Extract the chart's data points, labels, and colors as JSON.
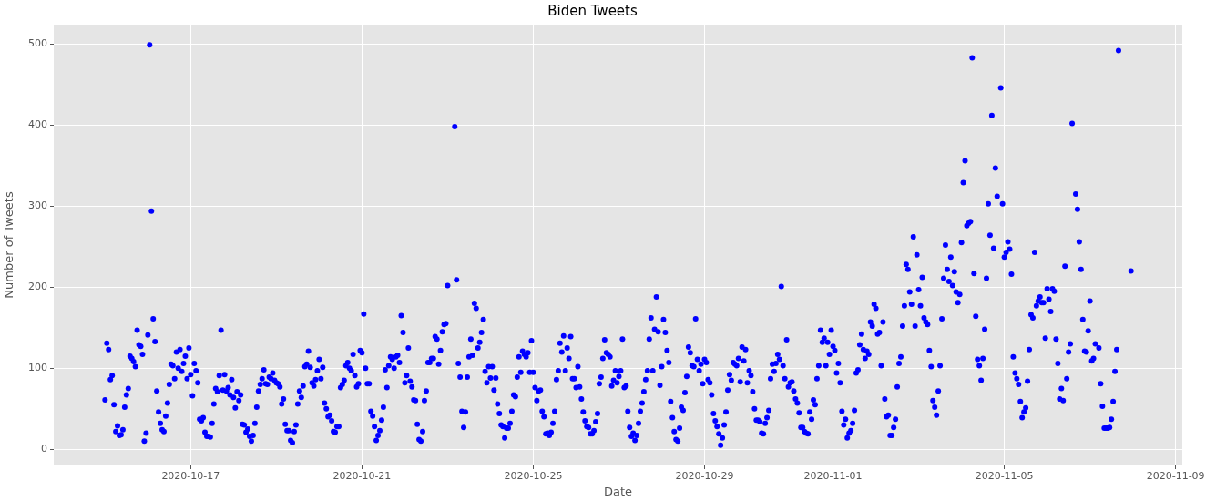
{
  "chart_data": {
    "type": "scatter",
    "title": "Biden Tweets",
    "xlabel": "Date",
    "ylabel": "Number of Tweets",
    "xlim": [
      "2020-10-13T19:15",
      "2020-11-09T03:45"
    ],
    "xticks": [
      "2020-10-17",
      "2020-10-21",
      "2020-10-25",
      "2020-10-29",
      "2020-11-01",
      "2020-11-05",
      "2020-11-09"
    ],
    "ylim": [
      -20,
      524
    ],
    "yticks": [
      0,
      100,
      200,
      300,
      400,
      500
    ],
    "grid": true,
    "marker": "circle",
    "x": [
      "2020-10-15T00:00",
      "2020-10-15T01:00",
      "2020-10-15T02:00",
      "2020-10-15T03:00",
      "2020-10-15T04:00",
      "2020-10-15T05:00",
      "2020-10-15T06:00",
      "2020-10-15T07:00",
      "2020-10-15T08:00",
      "2020-10-15T09:00",
      "2020-10-15T10:00",
      "2020-10-15T11:00",
      "2020-10-15T12:00",
      "2020-10-15T13:00",
      "2020-10-15T14:00",
      "2020-10-15T15:00",
      "2020-10-15T16:00",
      "2020-10-15T17:00",
      "2020-10-15T18:00",
      "2020-10-15T19:00",
      "2020-10-15T20:00",
      "2020-10-15T21:00",
      "2020-10-15T22:00",
      "2020-10-15T23:00",
      "2020-10-16T00:00",
      "2020-10-16T01:00",
      "2020-10-16T02:00",
      "2020-10-16T03:00",
      "2020-10-16T04:00",
      "2020-10-16T05:00",
      "2020-10-16T06:00",
      "2020-10-16T07:00",
      "2020-10-16T08:00",
      "2020-10-16T09:00",
      "2020-10-16T10:00",
      "2020-10-16T11:00",
      "2020-10-16T12:00",
      "2020-10-16T13:00",
      "2020-10-16T14:00",
      "2020-10-16T15:00",
      "2020-10-16T16:00",
      "2020-10-16T17:00",
      "2020-10-16T18:00",
      "2020-10-16T19:00",
      "2020-10-16T20:00",
      "2020-10-16T21:00",
      "2020-10-16T22:00",
      "2020-10-16T23:00",
      "2020-10-17T00:00",
      "2020-10-17T01:00",
      "2020-10-17T02:00",
      "2020-10-17T03:00",
      "2020-10-17T04:00",
      "2020-10-17T05:00",
      "2020-10-17T06:00",
      "2020-10-17T07:00",
      "2020-10-17T08:00",
      "2020-10-17T09:00",
      "2020-10-17T10:00",
      "2020-10-17T11:00",
      "2020-10-17T12:00",
      "2020-10-17T13:00",
      "2020-10-17T14:00",
      "2020-10-17T15:00",
      "2020-10-17T16:00",
      "2020-10-17T17:00",
      "2020-10-17T18:00",
      "2020-10-17T19:00",
      "2020-10-17T20:00",
      "2020-10-17T21:00",
      "2020-10-17T22:00",
      "2020-10-17T23:00",
      "2020-10-18T00:00",
      "2020-10-18T01:00",
      "2020-10-18T02:00",
      "2020-10-18T03:00",
      "2020-10-18T04:00",
      "2020-10-18T05:00",
      "2020-10-18T06:00",
      "2020-10-18T07:00",
      "2020-10-18T08:00",
      "2020-10-18T09:00",
      "2020-10-18T10:00",
      "2020-10-18T11:00",
      "2020-10-18T12:00",
      "2020-10-18T13:00",
      "2020-10-18T14:00",
      "2020-10-18T15:00",
      "2020-10-18T16:00",
      "2020-10-18T17:00",
      "2020-10-18T18:00",
      "2020-10-18T19:00",
      "2020-10-18T20:00",
      "2020-10-18T21:00",
      "2020-10-18T22:00",
      "2020-10-18T23:00",
      "2020-10-19T00:00",
      "2020-10-19T01:00",
      "2020-10-19T02:00",
      "2020-10-19T03:00",
      "2020-10-19T04:00",
      "2020-10-19T05:00",
      "2020-10-19T06:00",
      "2020-10-19T07:00",
      "2020-10-19T08:00",
      "2020-10-19T09:00",
      "2020-10-19T10:00",
      "2020-10-19T11:00",
      "2020-10-19T12:00",
      "2020-10-19T13:00",
      "2020-10-19T14:00",
      "2020-10-19T15:00",
      "2020-10-19T16:00",
      "2020-10-19T17:00",
      "2020-10-19T18:00",
      "2020-10-19T19:00",
      "2020-10-19T20:00",
      "2020-10-19T21:00",
      "2020-10-19T22:00",
      "2020-10-19T23:00",
      "2020-10-20T00:00",
      "2020-10-20T01:00",
      "2020-10-20T02:00",
      "2020-10-20T03:00",
      "2020-10-20T04:00",
      "2020-10-20T05:00",
      "2020-10-20T06:00",
      "2020-10-20T07:00",
      "2020-10-20T08:00",
      "2020-10-20T09:00",
      "2020-10-20T10:00",
      "2020-10-20T11:00",
      "2020-10-20T12:00",
      "2020-10-20T13:00",
      "2020-10-20T14:00",
      "2020-10-20T15:00",
      "2020-10-20T16:00",
      "2020-10-20T17:00",
      "2020-10-20T18:00",
      "2020-10-20T19:00",
      "2020-10-20T20:00",
      "2020-10-20T21:00",
      "2020-10-20T22:00",
      "2020-10-20T23:00",
      "2020-10-21T00:00",
      "2020-10-21T01:00",
      "2020-10-21T02:00",
      "2020-10-21T03:00",
      "2020-10-21T04:00",
      "2020-10-21T05:00",
      "2020-10-21T06:00",
      "2020-10-21T07:00",
      "2020-10-21T08:00",
      "2020-10-21T09:00",
      "2020-10-21T10:00",
      "2020-10-21T11:00",
      "2020-10-21T12:00",
      "2020-10-21T13:00",
      "2020-10-21T14:00",
      "2020-10-21T15:00",
      "2020-10-21T16:00",
      "2020-10-21T17:00",
      "2020-10-21T18:00",
      "2020-10-21T19:00",
      "2020-10-21T20:00",
      "2020-10-21T21:00",
      "2020-10-21T22:00",
      "2020-10-21T23:00",
      "2020-10-22T00:00",
      "2020-10-22T01:00",
      "2020-10-22T02:00",
      "2020-10-22T03:00",
      "2020-10-22T04:00",
      "2020-10-22T05:00",
      "2020-10-22T06:00",
      "2020-10-22T07:00",
      "2020-10-22T08:00",
      "2020-10-22T09:00",
      "2020-10-22T10:00",
      "2020-10-22T11:00",
      "2020-10-22T12:00",
      "2020-10-22T13:00",
      "2020-10-22T14:00",
      "2020-10-22T15:00",
      "2020-10-22T16:00",
      "2020-10-22T17:00",
      "2020-10-22T18:00",
      "2020-10-22T19:00",
      "2020-10-22T20:00",
      "2020-10-22T21:00",
      "2020-10-22T22:00",
      "2020-10-22T23:00",
      "2020-10-23T00:00",
      "2020-10-23T01:00",
      "2020-10-23T02:00",
      "2020-10-23T03:00",
      "2020-10-23T04:00",
      "2020-10-23T05:00",
      "2020-10-23T06:00",
      "2020-10-23T07:00",
      "2020-10-23T08:00",
      "2020-10-23T09:00",
      "2020-10-23T10:00",
      "2020-10-23T11:00",
      "2020-10-23T12:00",
      "2020-10-23T13:00",
      "2020-10-23T14:00",
      "2020-10-23T15:00",
      "2020-10-23T16:00",
      "2020-10-23T17:00",
      "2020-10-23T18:00",
      "2020-10-23T19:00",
      "2020-10-23T20:00",
      "2020-10-23T21:00",
      "2020-10-23T22:00",
      "2020-10-23T23:00",
      "2020-10-24T00:00",
      "2020-10-24T01:00",
      "2020-10-24T02:00",
      "2020-10-24T03:00",
      "2020-10-24T04:00",
      "2020-10-24T05:00",
      "2020-10-24T06:00",
      "2020-10-24T07:00",
      "2020-10-24T08:00",
      "2020-10-24T09:00",
      "2020-10-24T10:00",
      "2020-10-24T11:00",
      "2020-10-24T12:00",
      "2020-10-24T13:00",
      "2020-10-24T14:00",
      "2020-10-24T15:00",
      "2020-10-24T16:00",
      "2020-10-24T17:00",
      "2020-10-24T18:00",
      "2020-10-24T19:00",
      "2020-10-24T20:00",
      "2020-10-24T21:00",
      "2020-10-24T22:00",
      "2020-10-24T23:00",
      "2020-10-25T00:00",
      "2020-10-25T01:00",
      "2020-10-25T02:00",
      "2020-10-25T03:00",
      "2020-10-25T04:00",
      "2020-10-25T05:00",
      "2020-10-25T06:00",
      "2020-10-25T07:00",
      "2020-10-25T08:00",
      "2020-10-25T09:00",
      "2020-10-25T10:00",
      "2020-10-25T11:00",
      "2020-10-25T12:00",
      "2020-10-25T13:00",
      "2020-10-25T14:00",
      "2020-10-25T15:00",
      "2020-10-25T16:00",
      "2020-10-25T17:00",
      "2020-10-25T18:00",
      "2020-10-25T19:00",
      "2020-10-25T20:00",
      "2020-10-25T21:00",
      "2020-10-25T22:00",
      "2020-10-25T23:00",
      "2020-10-26T00:00",
      "2020-10-26T01:00",
      "2020-10-26T02:00",
      "2020-10-26T03:00",
      "2020-10-26T04:00",
      "2020-10-26T05:00",
      "2020-10-26T06:00",
      "2020-10-26T07:00",
      "2020-10-26T08:00",
      "2020-10-26T09:00",
      "2020-10-26T10:00",
      "2020-10-26T11:00",
      "2020-10-26T12:00",
      "2020-10-26T13:00",
      "2020-10-26T14:00",
      "2020-10-26T15:00",
      "2020-10-26T16:00",
      "2020-10-26T17:00",
      "2020-10-26T18:00",
      "2020-10-26T19:00",
      "2020-10-26T20:00",
      "2020-10-26T21:00",
      "2020-10-26T22:00",
      "2020-10-26T23:00",
      "2020-10-27T00:00",
      "2020-10-27T01:00",
      "2020-10-27T02:00",
      "2020-10-27T03:00",
      "2020-10-27T04:00",
      "2020-10-27T05:00",
      "2020-10-27T06:00",
      "2020-10-27T07:00",
      "2020-10-27T08:00",
      "2020-10-27T09:00",
      "2020-10-27T10:00",
      "2020-10-27T11:00",
      "2020-10-27T12:00",
      "2020-10-27T13:00",
      "2020-10-27T14:00",
      "2020-10-27T15:00",
      "2020-10-27T16:00",
      "2020-10-27T17:00",
      "2020-10-27T18:00",
      "2020-10-27T19:00",
      "2020-10-27T20:00",
      "2020-10-27T21:00",
      "2020-10-27T22:00",
      "2020-10-27T23:00",
      "2020-10-28T00:00",
      "2020-10-28T01:00",
      "2020-10-28T02:00",
      "2020-10-28T03:00",
      "2020-10-28T04:00",
      "2020-10-28T05:00",
      "2020-10-28T06:00",
      "2020-10-28T07:00",
      "2020-10-28T08:00",
      "2020-10-28T09:00",
      "2020-10-28T10:00",
      "2020-10-28T11:00",
      "2020-10-28T12:00",
      "2020-10-28T13:00",
      "2020-10-28T14:00",
      "2020-10-28T15:00",
      "2020-10-28T16:00",
      "2020-10-28T17:00",
      "2020-10-28T18:00",
      "2020-10-28T19:00",
      "2020-10-28T20:00",
      "2020-10-28T21:00",
      "2020-10-28T22:00",
      "2020-10-28T23:00",
      "2020-10-29T00:00",
      "2020-10-29T01:00",
      "2020-10-29T02:00",
      "2020-10-29T03:00",
      "2020-10-29T04:00",
      "2020-10-29T05:00",
      "2020-10-29T06:00",
      "2020-10-29T07:00",
      "2020-10-29T08:00",
      "2020-10-29T09:00",
      "2020-10-29T10:00",
      "2020-10-29T11:00",
      "2020-10-29T12:00",
      "2020-10-29T13:00",
      "2020-10-29T14:00",
      "2020-10-29T15:00",
      "2020-10-29T16:00",
      "2020-10-29T17:00",
      "2020-10-29T18:00",
      "2020-10-29T19:00",
      "2020-10-29T20:00",
      "2020-10-29T21:00",
      "2020-10-29T22:00",
      "2020-10-29T23:00",
      "2020-10-30T00:00",
      "2020-10-30T01:00",
      "2020-10-30T02:00",
      "2020-10-30T03:00",
      "2020-10-30T04:00",
      "2020-10-30T05:00",
      "2020-10-30T06:00",
      "2020-10-30T07:00",
      "2020-10-30T08:00",
      "2020-10-30T09:00",
      "2020-10-30T10:00",
      "2020-10-30T11:00",
      "2020-10-30T12:00",
      "2020-10-30T13:00",
      "2020-10-30T14:00",
      "2020-10-30T15:00",
      "2020-10-30T16:00",
      "2020-10-30T17:00",
      "2020-10-30T18:00",
      "2020-10-30T19:00",
      "2020-10-30T20:00",
      "2020-10-30T21:00",
      "2020-10-30T22:00",
      "2020-10-30T23:00",
      "2020-10-31T00:00",
      "2020-10-31T01:00",
      "2020-10-31T02:00",
      "2020-10-31T03:00",
      "2020-10-31T04:00",
      "2020-10-31T05:00",
      "2020-10-31T06:00",
      "2020-10-31T07:00",
      "2020-10-31T08:00",
      "2020-10-31T09:00",
      "2020-10-31T10:00",
      "2020-10-31T11:00",
      "2020-10-31T12:00",
      "2020-10-31T13:00",
      "2020-10-31T14:00",
      "2020-10-31T15:00",
      "2020-10-31T16:00",
      "2020-10-31T17:00",
      "2020-10-31T18:00",
      "2020-10-31T19:00",
      "2020-10-31T20:00",
      "2020-10-31T21:00",
      "2020-10-31T22:00",
      "2020-10-31T23:00",
      "2020-11-01T00:00",
      "2020-11-01T01:00",
      "2020-11-01T02:00",
      "2020-11-01T03:00",
      "2020-11-01T04:00",
      "2020-11-01T05:00",
      "2020-11-01T06:00",
      "2020-11-01T07:00",
      "2020-11-01T08:00",
      "2020-11-01T09:00",
      "2020-11-01T10:00",
      "2020-11-01T11:00",
      "2020-11-01T12:00",
      "2020-11-01T13:00",
      "2020-11-01T14:00",
      "2020-11-01T15:00",
      "2020-11-01T16:00",
      "2020-11-01T17:00",
      "2020-11-01T18:00",
      "2020-11-01T19:00",
      "2020-11-01T20:00",
      "2020-11-01T21:00",
      "2020-11-01T22:00",
      "2020-11-01T23:00",
      "2020-11-02T00:00",
      "2020-11-02T01:00",
      "2020-11-02T02:00",
      "2020-11-02T03:00",
      "2020-11-02T04:00",
      "2020-11-02T05:00",
      "2020-11-02T06:00",
      "2020-11-02T07:00",
      "2020-11-02T08:00",
      "2020-11-02T09:00",
      "2020-11-02T10:00",
      "2020-11-02T11:00",
      "2020-11-02T12:00",
      "2020-11-02T13:00",
      "2020-11-02T14:00",
      "2020-11-02T15:00",
      "2020-11-02T16:00",
      "2020-11-02T17:00",
      "2020-11-02T18:00",
      "2020-11-02T19:00",
      "2020-11-02T20:00",
      "2020-11-02T21:00",
      "2020-11-02T22:00",
      "2020-11-02T23:00",
      "2020-11-03T00:00",
      "2020-11-03T01:00",
      "2020-11-03T02:00",
      "2020-11-03T03:00",
      "2020-11-03T04:00",
      "2020-11-03T05:00",
      "2020-11-03T06:00",
      "2020-11-03T07:00",
      "2020-11-03T08:00",
      "2020-11-03T09:00",
      "2020-11-03T10:00",
      "2020-11-03T11:00",
      "2020-11-03T12:00",
      "2020-11-03T13:00",
      "2020-11-03T14:00",
      "2020-11-03T15:00",
      "2020-11-03T16:00",
      "2020-11-03T17:00",
      "2020-11-03T18:00",
      "2020-11-03T19:00",
      "2020-11-03T20:00",
      "2020-11-03T21:00",
      "2020-11-03T22:00",
      "2020-11-03T23:00",
      "2020-11-04T00:00",
      "2020-11-04T01:00",
      "2020-11-04T02:00",
      "2020-11-04T03:00",
      "2020-11-04T04:00",
      "2020-11-04T05:00",
      "2020-11-04T06:00",
      "2020-11-04T07:00",
      "2020-11-04T08:00",
      "2020-11-04T09:00",
      "2020-11-04T10:00",
      "2020-11-04T11:00",
      "2020-11-04T12:00",
      "2020-11-04T13:00",
      "2020-11-04T14:00",
      "2020-11-04T15:00",
      "2020-11-04T16:00",
      "2020-11-04T17:00",
      "2020-11-04T18:00",
      "2020-11-04T19:00",
      "2020-11-04T20:00",
      "2020-11-04T21:00",
      "2020-11-04T22:00",
      "2020-11-04T23:00",
      "2020-11-05T00:00",
      "2020-11-05T01:00",
      "2020-11-05T02:00",
      "2020-11-05T03:00",
      "2020-11-05T04:00",
      "2020-11-05T05:00",
      "2020-11-05T06:00",
      "2020-11-05T07:00",
      "2020-11-05T08:00",
      "2020-11-05T09:00",
      "2020-11-05T10:00",
      "2020-11-05T11:00",
      "2020-11-05T12:00",
      "2020-11-05T13:00",
      "2020-11-05T14:00",
      "2020-11-05T15:00",
      "2020-11-05T16:00",
      "2020-11-05T17:00",
      "2020-11-05T18:00",
      "2020-11-05T19:00",
      "2020-11-05T20:00",
      "2020-11-05T21:00",
      "2020-11-05T22:00",
      "2020-11-05T23:00",
      "2020-11-06T00:00",
      "2020-11-06T01:00",
      "2020-11-06T02:00",
      "2020-11-06T03:00",
      "2020-11-06T04:00",
      "2020-11-06T05:00",
      "2020-11-06T06:00",
      "2020-11-06T07:00",
      "2020-11-06T08:00",
      "2020-11-06T09:00",
      "2020-11-06T10:00",
      "2020-11-06T11:00",
      "2020-11-06T12:00",
      "2020-11-06T13:00",
      "2020-11-06T14:00",
      "2020-11-06T15:00",
      "2020-11-06T16:00",
      "2020-11-06T17:00",
      "2020-11-06T18:00",
      "2020-11-06T19:00",
      "2020-11-06T20:00",
      "2020-11-06T21:00",
      "2020-11-06T22:00",
      "2020-11-06T23:00",
      "2020-11-07T00:00",
      "2020-11-07T01:00",
      "2020-11-07T02:00",
      "2020-11-07T03:00",
      "2020-11-07T04:00",
      "2020-11-07T05:00",
      "2020-11-07T06:00",
      "2020-11-07T07:00",
      "2020-11-07T08:00",
      "2020-11-07T09:00",
      "2020-11-07T10:00",
      "2020-11-07T11:00",
      "2020-11-07T12:00",
      "2020-11-07T13:00",
      "2020-11-07T14:00",
      "2020-11-07T15:00",
      "2020-11-07T16:00",
      "2020-11-07T17:00",
      "2020-11-07T18:00",
      "2020-11-07T19:00",
      "2020-11-07T20:00",
      "2020-11-07T21:00",
      "2020-11-07T22:00",
      "2020-11-07T23:00"
    ],
    "series": [
      {
        "color": "#0000ff",
        "values": [
          61,
          131,
          123,
          86,
          91,
          55,
          22,
          29,
          17,
          18,
          24,
          52,
          67,
          75,
          115,
          112,
          108,
          102,
          147,
          129,
          127,
          117,
          10,
          20,
          141,
          499,
          294,
          161,
          133,
          72,
          46,
          32,
          24,
          22,
          41,
          57,
          80,
          105,
          103,
          87,
          120,
          100,
          123,
          96,
          106,
          115,
          87,
          125,
          92,
          66,
          106,
          97,
          82,
          37,
          35,
          39,
          21,
          16,
          16,
          15,
          32,
          56,
          75,
          71,
          91,
          147,
          73,
          92,
          72,
          76,
          67,
          86,
          64,
          51,
          71,
          60,
          67,
          31,
          30,
          21,
          25,
          16,
          10,
          17,
          32,
          52,
          72,
          80,
          87,
          98,
          81,
          80,
          89,
          87,
          94,
          85,
          82,
          81,
          77,
          56,
          62,
          31,
          23,
          23,
          11,
          8,
          22,
          30,
          56,
          72,
          64,
          78,
          102,
          105,
          121,
          101,
          82,
          78,
          86,
          97,
          111,
          87,
          101,
          57,
          50,
          40,
          42,
          35,
          22,
          21,
          28,
          28,
          76,
          80,
          85,
          103,
          107,
          100,
          97,
          117,
          91,
          77,
          81,
          122,
          119,
          167,
          100,
          81,
          81,
          47,
          41,
          28,
          11,
          17,
          23,
          36,
          52,
          98,
          76,
          103,
          114,
          111,
          100,
          114,
          116,
          107,
          165,
          144,
          82,
          91,
          125,
          84,
          77,
          61,
          60,
          31,
          12,
          10,
          22,
          60,
          72,
          107,
          107,
          112,
          112,
          139,
          136,
          105,
          122,
          145,
          154,
          155,
          202,
          null,
          null,
          null,
          398,
          209,
          106,
          89,
          47,
          27,
          46,
          89,
          114,
          136,
          116,
          180,
          174,
          125,
          132,
          144,
          160,
          96,
          82,
          102,
          88,
          102,
          73,
          88,
          56,
          44,
          30,
          28,
          14,
          26,
          26,
          32,
          47,
          67,
          65,
          89,
          114,
          95,
          121,
          117,
          114,
          119,
          95,
          134,
          95,
          76,
          60,
          72,
          73,
          47,
          40,
          19,
          20,
          17,
          21,
          32,
          47,
          86,
          97,
          131,
          120,
          140,
          97,
          125,
          112,
          139,
          87,
          87,
          76,
          102,
          77,
          62,
          46,
          35,
          28,
          27,
          19,
          19,
          23,
          34,
          44,
          81,
          89,
          112,
          135,
          119,
          117,
          114,
          78,
          85,
          97,
          82,
          90,
          97,
          136,
          76,
          78,
          47,
          27,
          16,
          20,
          11,
          17,
          32,
          47,
          57,
          71,
          86,
          97,
          136,
          162,
          97,
          148,
          188,
          145,
          79,
          102,
          160,
          144,
          122,
          107,
          59,
          39,
          22,
          12,
          10,
          26,
          52,
          48,
          70,
          90,
          126,
          119,
          103,
          102,
          161,
          111,
          97,
          105,
          81,
          111,
          107,
          86,
          82,
          67,
          44,
          35,
          28,
          19,
          5,
          14,
          30,
          46,
          73,
          92,
          85,
          107,
          105,
          103,
          112,
          83,
          126,
          109,
          123,
          82,
          97,
          91,
          71,
          50,
          36,
          36,
          34,
          20,
          19,
          32,
          39,
          48,
          87,
          105,
          96,
          106,
          117,
          111,
          201,
          103,
          87,
          135,
          77,
          82,
          83,
          72,
          62,
          57,
          45,
          27,
          27,
          22,
          20,
          19,
          46,
          37,
          61,
          55,
          87,
          103,
          147,
          132,
          137,
          103,
          132,
          117,
          147,
          127,
          122,
          94,
          106,
          82,
          47,
          30,
          37,
          14,
          20,
          23,
          32,
          48,
          94,
          98,
          129,
          142,
          123,
          112,
          121,
          117,
          157,
          152,
          179,
          174,
          142,
          144,
          103,
          157,
          62,
          40,
          42,
          17,
          17,
          27,
          37,
          77,
          106,
          114,
          152,
          177,
          228,
          222,
          194,
          179,
          262,
          152,
          240,
          197,
          177,
          212,
          162,
          157,
          154,
          122,
          102,
          60,
          52,
          42,
          72,
          103,
          161,
          211,
          252,
          222,
          207,
          237,
          202,
          219,
          194,
          181,
          191,
          255,
          329,
          356,
          276,
          279,
          281,
          483,
          217,
          164,
          111,
          103,
          85,
          112,
          148,
          211,
          303,
          264,
          412,
          248,
          347,
          312,
          null,
          446,
          303,
          237,
          243,
          256,
          247,
          216,
          114,
          94,
          87,
          80,
          59,
          39,
          46,
          51,
          84,
          123,
          166,
          162,
          243,
          177,
          183,
          188,
          181,
          181,
          137,
          198,
          185,
          170,
          198,
          195,
          136,
          106,
          62,
          75,
          60,
          226,
          87,
          120,
          130,
          402,
          null,
          315,
          296,
          256,
          222,
          160,
          121,
          120,
          146,
          183,
          109,
          112,
          130,
          null,
          125,
          81,
          53,
          26,
          26,
          26,
          27,
          37,
          59,
          96,
          123,
          492,
          null,
          null,
          null,
          null,
          null,
          null,
          220
        ]
      }
    ]
  }
}
